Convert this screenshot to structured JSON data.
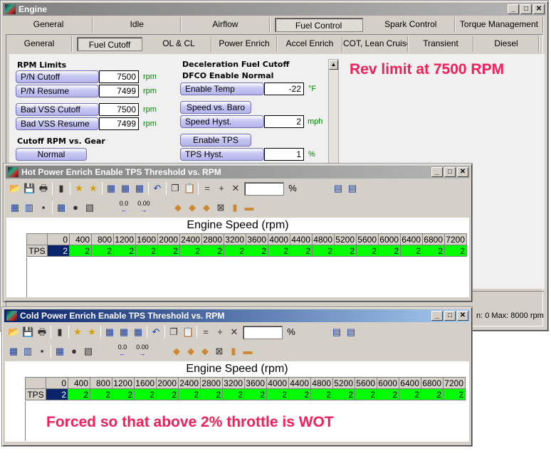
{
  "engine": {
    "title": "Engine",
    "tabs": [
      "General",
      "Idle",
      "Airflow",
      "Fuel Control",
      "Spark Control",
      "Torque Management"
    ],
    "subtabs": [
      "General",
      "Fuel Cutoff",
      "OL & CL",
      "Power Enrich",
      "Accel Enrich",
      "COT, Lean Cruise",
      "Transient",
      "Diesel"
    ],
    "selected_tab": "Fuel Control",
    "selected_subtab": "Fuel Cutoff",
    "rpm_limits": {
      "heading": "RPM Limits",
      "fields": [
        {
          "label": "P/N Cutoff",
          "value": "7500",
          "unit": "rpm"
        },
        {
          "label": "P/N Resume",
          "value": "7499",
          "unit": "rpm"
        },
        {
          "label": "Bad VSS Cutoff",
          "value": "7500",
          "unit": "rpm"
        },
        {
          "label": "Bad VSS Resume",
          "value": "7499",
          "unit": "rpm"
        }
      ]
    },
    "cutoff_gear": {
      "heading": "Cutoff RPM vs. Gear",
      "button": "Normal"
    },
    "dfco": {
      "heading": "Deceleration Fuel Cutoff",
      "subheading": "DFCO Enable Normal",
      "enable_temp": {
        "label": "Enable Temp",
        "value": "-22",
        "unit": "°F"
      },
      "speed_baro": "Speed vs. Baro",
      "speed_hyst": {
        "label": "Speed Hyst.",
        "value": "2",
        "unit": "mph"
      },
      "enable_tps": "Enable TPS",
      "tps_hyst": {
        "label": "TPS Hyst.",
        "value": "1",
        "unit": "%"
      }
    },
    "annotation": "Rev limit at 7500 RPM",
    "status": "n: 0 Max: 8000 rpm"
  },
  "hot": {
    "title": "Hot Power Enrich Enable TPS Threshold vs. RPM",
    "axis": "Engine Speed (rpm)",
    "row_label": "TPS",
    "pct": "%",
    "rpm": [
      "0",
      "400",
      "800",
      "1200",
      "1600",
      "2000",
      "2400",
      "2800",
      "3200",
      "3600",
      "4000",
      "4400",
      "4800",
      "5200",
      "5600",
      "6000",
      "6400",
      "6800",
      "7200"
    ],
    "values": [
      "2",
      "2",
      "2",
      "2",
      "2",
      "2",
      "2",
      "2",
      "2",
      "2",
      "2",
      "2",
      "2",
      "2",
      "2",
      "2",
      "2",
      "2",
      "2"
    ]
  },
  "cold": {
    "title": "Cold Power Enrich Enable TPS Threshold vs. RPM",
    "axis": "Engine Speed (rpm)",
    "row_label": "TPS",
    "pct": "%",
    "rpm": [
      "0",
      "400",
      "800",
      "1200",
      "1600",
      "2000",
      "2400",
      "2800",
      "3200",
      "3600",
      "4000",
      "4400",
      "4800",
      "5200",
      "5600",
      "6000",
      "6400",
      "6800",
      "7200"
    ],
    "values": [
      "2",
      "2",
      "2",
      "2",
      "2",
      "2",
      "2",
      "2",
      "2",
      "2",
      "2",
      "2",
      "2",
      "2",
      "2",
      "2",
      "2",
      "2",
      "2"
    ],
    "annotation": "Forced so that above 2% throttle is WOT"
  },
  "toolbar": {
    "shift_left": "0.0",
    "shift_right": "0.00"
  },
  "colors": {
    "cell": "#00ff00",
    "selected_cell": "#0a246a",
    "annotation": "#f0205a"
  }
}
